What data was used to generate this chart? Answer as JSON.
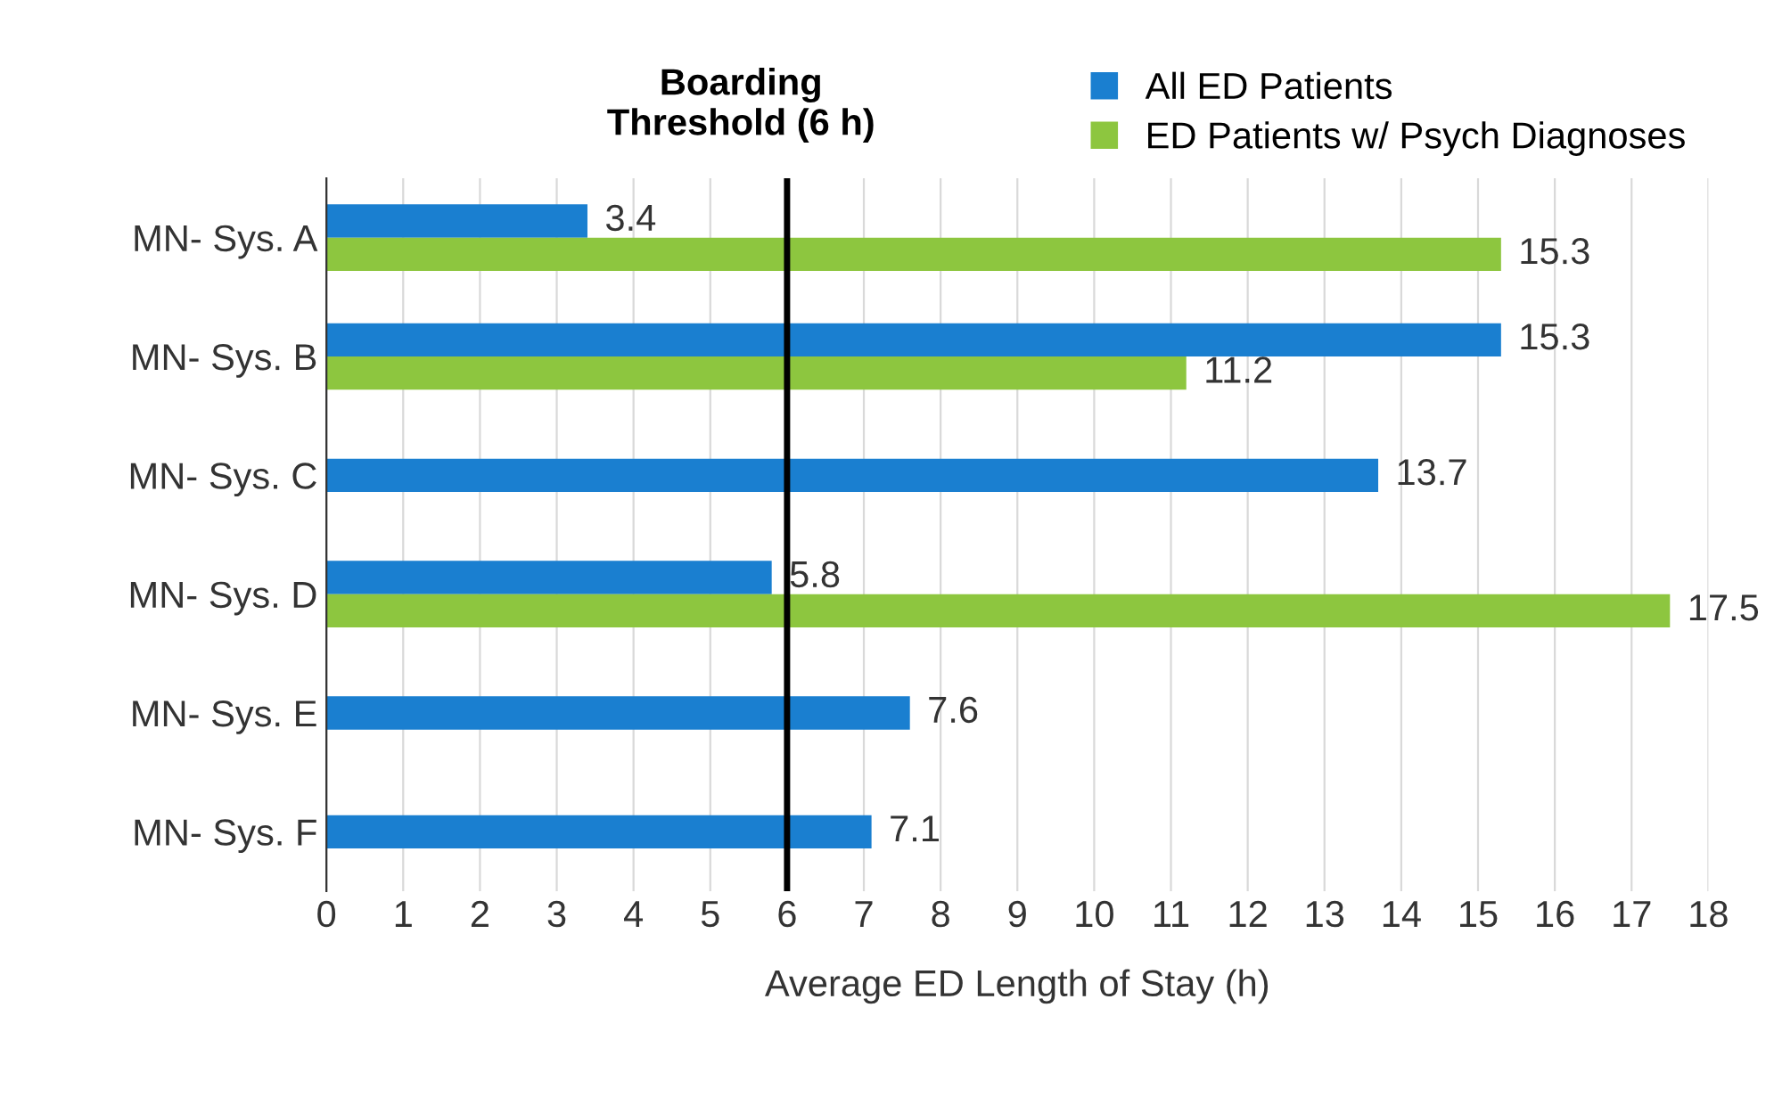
{
  "chart_data": {
    "type": "bar",
    "orientation": "horizontal",
    "xlabel": "Average ED Length of Stay (h)",
    "categories": [
      "MN- Sys. A",
      "MN- Sys. B",
      "MN- Sys. C",
      "MN- Sys. D",
      "MN- Sys. E",
      "MN- Sys. F"
    ],
    "series": [
      {
        "name": "All ED Patients",
        "color": "#1a7fd0",
        "values": [
          3.4,
          15.3,
          13.7,
          5.8,
          7.6,
          7.1
        ]
      },
      {
        "name": "ED Patients w/ Psych Diagnoses",
        "color": "#8dc63f",
        "values": [
          15.3,
          11.2,
          null,
          17.5,
          null,
          null
        ]
      }
    ],
    "xlim": [
      0,
      18
    ],
    "xticks": [
      0,
      1,
      2,
      3,
      4,
      5,
      6,
      7,
      8,
      9,
      10,
      11,
      12,
      13,
      14,
      15,
      16,
      17,
      18
    ],
    "grid": "x",
    "legend": "top right",
    "data_labels": true,
    "ref_lines": [
      {
        "axis": "x",
        "value": 6,
        "label": "Boarding Threshold (6 h)",
        "color": "#000000"
      }
    ]
  }
}
